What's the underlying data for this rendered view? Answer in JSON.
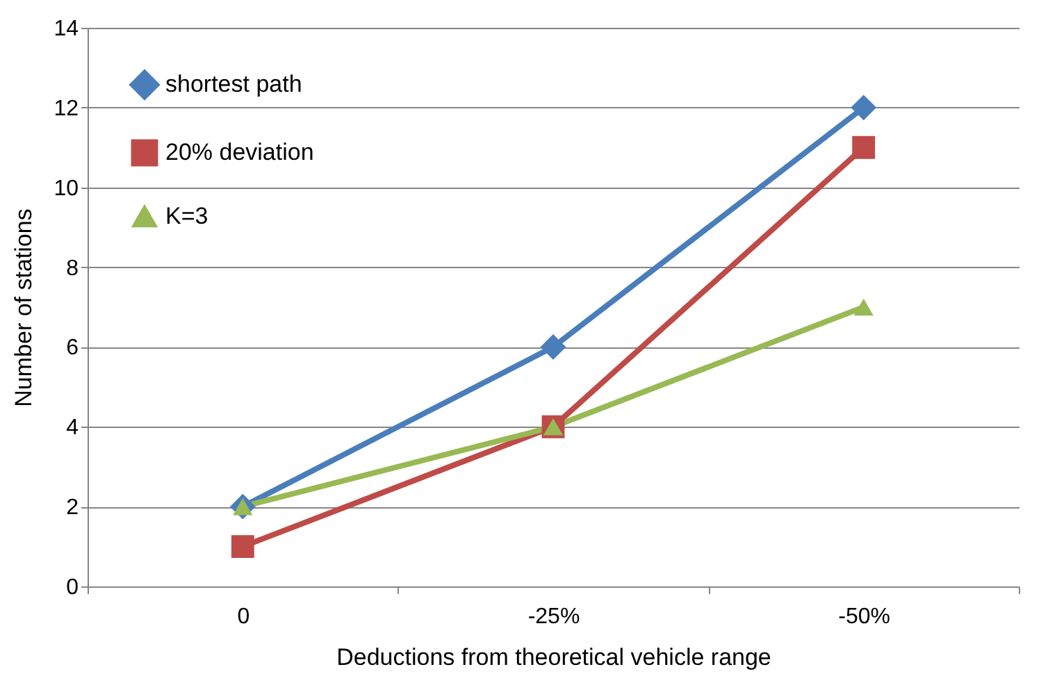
{
  "chart_data": {
    "type": "line",
    "xlabel": "Deductions from theoretical vehicle range",
    "ylabel": "Number of stations",
    "categories": [
      "0",
      "-25%",
      "-50%"
    ],
    "series": [
      {
        "name": "shortest path",
        "color": "#4a7ebb",
        "marker": "diamond",
        "values": [
          2,
          6,
          12
        ]
      },
      {
        "name": "20% deviation",
        "color": "#be4b48",
        "marker": "square",
        "values": [
          1,
          4,
          11
        ]
      },
      {
        "name": "K=3",
        "color": "#98b954",
        "marker": "triangle",
        "values": [
          2,
          4,
          7
        ]
      }
    ],
    "ylim": [
      0,
      14
    ],
    "yticks": [
      0,
      2,
      4,
      6,
      8,
      10,
      12,
      14
    ],
    "grid": "y",
    "legend": "top left",
    "line_style": "solid"
  }
}
